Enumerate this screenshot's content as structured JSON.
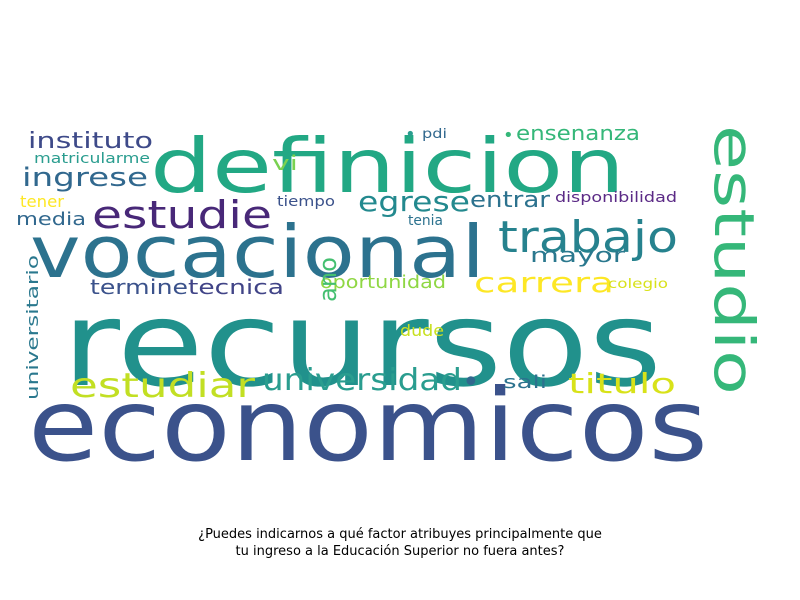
{
  "caption": {
    "line1": "¿Puedes indicarnos a qué factor atribuyes principalmente que",
    "line2": "tu ingreso a la Educación Superior no fuera antes?"
  },
  "wordcloud": {
    "words": [
      {
        "text": "recursos",
        "color": "#21918c"
      },
      {
        "text": "economicos",
        "color": "#3b528b"
      },
      {
        "text": "vocacional",
        "color": "#2c728e"
      },
      {
        "text": "definicion",
        "color": "#22a884"
      },
      {
        "text": "estudio",
        "color": "#35b779"
      },
      {
        "text": "trabajo",
        "color": "#26828e"
      },
      {
        "text": "estudie",
        "color": "#482878"
      },
      {
        "text": "estudiar",
        "color": "#c2df23"
      },
      {
        "text": "universidad",
        "color": "#2a9d8f"
      },
      {
        "text": "titulo",
        "color": "#d8e219"
      },
      {
        "text": "carrera",
        "color": "#fde725"
      },
      {
        "text": "egrese",
        "color": "#23898e"
      },
      {
        "text": "ingrese",
        "color": "#31688e"
      },
      {
        "text": "instituto",
        "color": "#3e4a89"
      },
      {
        "text": "entrar",
        "color": "#2c728e"
      },
      {
        "text": "mayor",
        "color": "#2a788e"
      },
      {
        "text": "termine",
        "color": "#3b528b"
      },
      {
        "text": "tecnica",
        "color": "#414487"
      },
      {
        "text": "ensenanza",
        "color": "#35b779"
      },
      {
        "text": "oportunidad",
        "color": "#8fd744"
      },
      {
        "text": "ano",
        "color": "#44bf70"
      },
      {
        "text": "sali",
        "color": "#2c728e"
      },
      {
        "text": "media",
        "color": "#31688e"
      },
      {
        "text": "dude",
        "color": "#c8e020"
      },
      {
        "text": "universitario",
        "color": "#2a788e"
      },
      {
        "text": "vi",
        "color": "#7ad151"
      },
      {
        "text": "matricularme",
        "color": "#2a9d8f"
      },
      {
        "text": "tener",
        "color": "#fde725"
      },
      {
        "text": "tiempo",
        "color": "#3b528b"
      },
      {
        "text": "tenia",
        "color": "#2c728e"
      },
      {
        "text": "disponibilidad",
        "color": "#5b2a86"
      },
      {
        "text": "colegio",
        "color": "#d8e219"
      },
      {
        "text": "pdi",
        "color": "#31688e"
      },
      {
        "text": "•",
        "color": "#2a9d8f"
      },
      {
        "text": "•",
        "color": "#35b779"
      },
      {
        "text": "•",
        "color": "#31688e"
      }
    ]
  }
}
